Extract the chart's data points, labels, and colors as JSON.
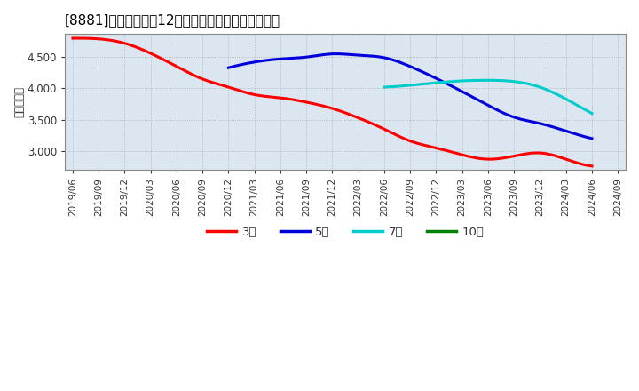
{
  "title": "[8881]　当期純利益12か月移動合計の平均値の推移",
  "ylabel": "（百万円）",
  "background_color": "#ffffff",
  "plot_bg_color": "#dce6f0",
  "ylim": [
    2700,
    4870
  ],
  "yticks": [
    3000,
    3500,
    4000,
    4500
  ],
  "series": {
    "3年": {
      "color": "#ff0000",
      "data": [
        [
          "2019/06",
          4800
        ],
        [
          "2019/09",
          4790
        ],
        [
          "2019/12",
          4720
        ],
        [
          "2020/03",
          4560
        ],
        [
          "2020/06",
          4350
        ],
        [
          "2020/09",
          4150
        ],
        [
          "2020/12",
          4020
        ],
        [
          "2021/03",
          3900
        ],
        [
          "2021/06",
          3850
        ],
        [
          "2021/09",
          3780
        ],
        [
          "2021/12",
          3680
        ],
        [
          "2022/03",
          3530
        ],
        [
          "2022/06",
          3350
        ],
        [
          "2022/09",
          3160
        ],
        [
          "2022/12",
          3050
        ],
        [
          "2023/03",
          2940
        ],
        [
          "2023/06",
          2870
        ],
        [
          "2023/09",
          2920
        ],
        [
          "2023/12",
          2970
        ],
        [
          "2024/03",
          2870
        ],
        [
          "2024/06",
          2760
        ]
      ]
    },
    "5年": {
      "color": "#0000dd",
      "data": [
        [
          "2020/12",
          4330
        ],
        [
          "2021/03",
          4420
        ],
        [
          "2021/06",
          4470
        ],
        [
          "2021/09",
          4500
        ],
        [
          "2021/12",
          4550
        ],
        [
          "2022/03",
          4530
        ],
        [
          "2022/06",
          4490
        ],
        [
          "2022/09",
          4350
        ],
        [
          "2022/12",
          4160
        ],
        [
          "2023/03",
          3950
        ],
        [
          "2023/06",
          3730
        ],
        [
          "2023/09",
          3540
        ],
        [
          "2023/12",
          3440
        ],
        [
          "2024/03",
          3320
        ],
        [
          "2024/06",
          3200
        ]
      ]
    },
    "7年": {
      "color": "#00cccc",
      "data": [
        [
          "2022/06",
          4020
        ],
        [
          "2022/09",
          4050
        ],
        [
          "2022/12",
          4090
        ],
        [
          "2023/03",
          4120
        ],
        [
          "2023/06",
          4130
        ],
        [
          "2023/09",
          4110
        ],
        [
          "2023/12",
          4020
        ],
        [
          "2024/03",
          3830
        ],
        [
          "2024/06",
          3600
        ]
      ]
    },
    "10年": {
      "color": "#008000",
      "data": []
    }
  },
  "xtick_labels": [
    "2019/06",
    "2019/09",
    "2019/12",
    "2020/03",
    "2020/06",
    "2020/09",
    "2020/12",
    "2021/03",
    "2021/06",
    "2021/09",
    "2021/12",
    "2022/03",
    "2022/06",
    "2022/09",
    "2022/12",
    "2023/03",
    "2023/06",
    "2023/09",
    "2023/12",
    "2024/03",
    "2024/06",
    "2024/09"
  ],
  "legend_entries": [
    "3年",
    "5年",
    "7年",
    "10年"
  ],
  "legend_colors": [
    "#ff0000",
    "#0000dd",
    "#00cccc",
    "#008000"
  ],
  "title_fontsize": 11,
  "axis_fontsize": 8.5,
  "tick_fontsize": 7.5,
  "legend_fontsize": 9.5,
  "linewidth": 2.2
}
